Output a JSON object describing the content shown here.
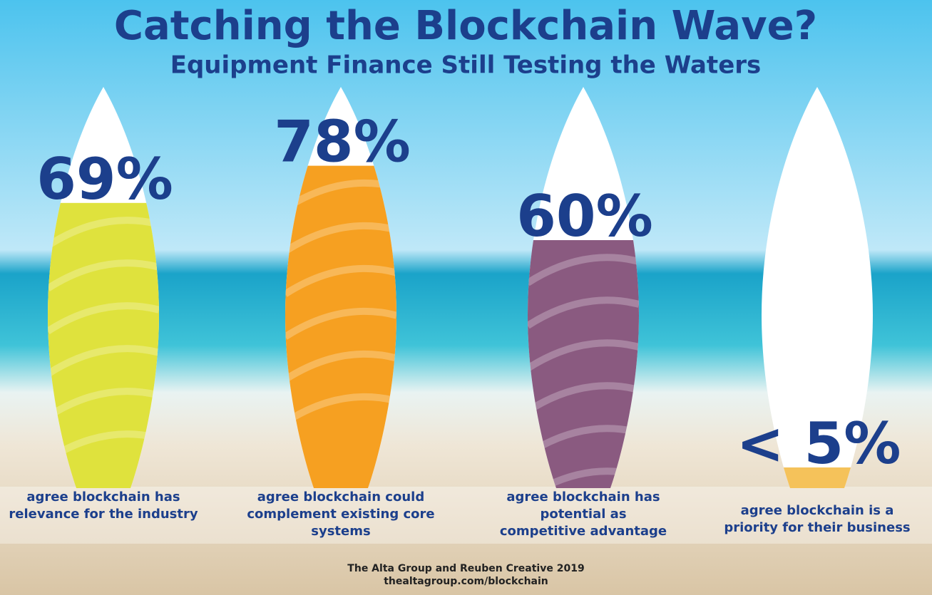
{
  "chart_data": {
    "type": "surfboard",
    "title": "Catching the Blockchain Wave?",
    "subtitle": "Equipment Finance Still Testing the Waters",
    "categories": [
      "agree blockchain has relevance for the industry",
      "agree blockchain could complement existing core systems",
      "agree blockchain has potential as competitive advantage",
      "agree blockchain is a priority for their business"
    ],
    "values": [
      69,
      78,
      60,
      5
    ],
    "value_labels": [
      "69%",
      "78%",
      "60%",
      "< 5%"
    ],
    "colors": [
      "#dfe23d",
      "#f6a021",
      "#8a5a80",
      "#f5c25a"
    ],
    "ylim": [
      0,
      100
    ],
    "footer": [
      "The Alta Group and Reuben Creative 2019",
      "thealtagroup.com/blockchain"
    ]
  }
}
